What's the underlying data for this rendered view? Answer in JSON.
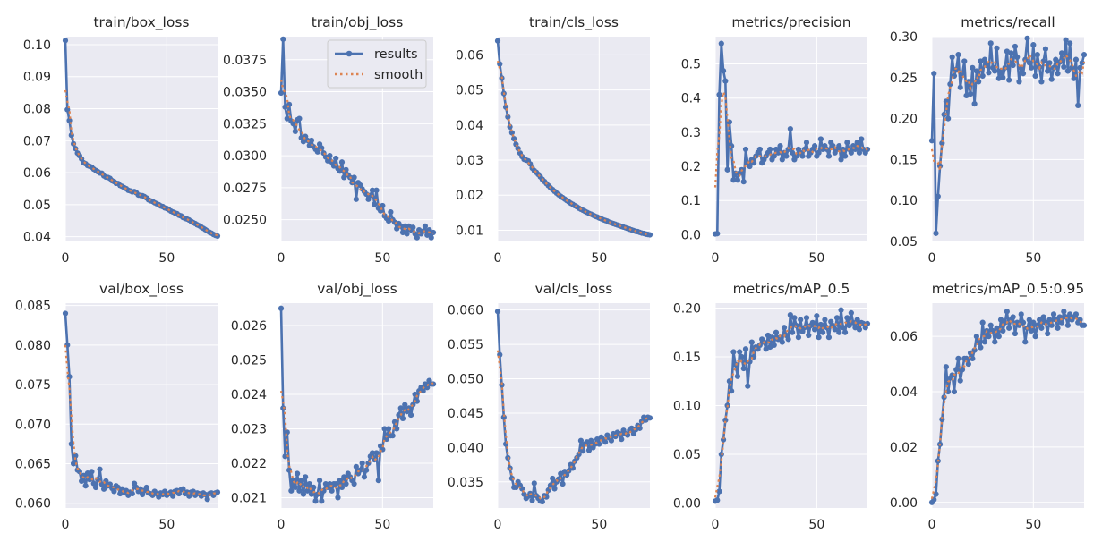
{
  "colors": {
    "results": "#4c72b0",
    "smooth": "#dd8452",
    "background": "#eaeaf2",
    "grid": "#ffffff"
  },
  "legend": {
    "results_label": "results",
    "smooth_label": "smooth",
    "placement": "upper-right of train/obj_loss"
  },
  "chart_data": [
    {
      "type": "line",
      "title": "train/box_loss",
      "xlabel": "",
      "ylabel": "",
      "xlim": [
        0,
        75
      ],
      "ylim": [
        0.0385,
        0.1025
      ],
      "xticks": [
        0,
        50
      ],
      "yticks": [
        0.04,
        0.05,
        0.06,
        0.07,
        0.08,
        0.09,
        0.1
      ],
      "series": [
        {
          "name": "results",
          "x_start": 0,
          "values": [
            0.1013,
            0.0797,
            0.0763,
            0.0717,
            0.069,
            0.0675,
            0.0661,
            0.0653,
            0.0643,
            0.0631,
            0.0628,
            0.0622,
            0.062,
            0.0617,
            0.0611,
            0.0607,
            0.0603,
            0.0599,
            0.0598,
            0.059,
            0.0586,
            0.0585,
            0.0582,
            0.0575,
            0.0572,
            0.0567,
            0.0566,
            0.056,
            0.0557,
            0.0553,
            0.055,
            0.0545,
            0.0543,
            0.054,
            0.0541,
            0.0537,
            0.053,
            0.0529,
            0.0528,
            0.0525,
            0.0521,
            0.0515,
            0.0512,
            0.051,
            0.0506,
            0.0503,
            0.05,
            0.0496,
            0.0494,
            0.049,
            0.0488,
            0.0484,
            0.048,
            0.0477,
            0.0474,
            0.0472,
            0.0467,
            0.0465,
            0.046,
            0.0457,
            0.0455,
            0.0452,
            0.0448,
            0.0444,
            0.0441,
            0.0437,
            0.0434,
            0.043,
            0.0426,
            0.0422,
            0.0418,
            0.0414,
            0.0411,
            0.0407,
            0.0404,
            0.0402
          ]
        }
      ]
    },
    {
      "type": "line",
      "title": "train/obj_loss",
      "xlabel": "",
      "ylabel": "",
      "xlim": [
        0,
        75
      ],
      "ylim": [
        0.0233,
        0.0393
      ],
      "xticks": [
        0,
        50
      ],
      "yticks": [
        0.025,
        0.0275,
        0.03,
        0.0325,
        0.035,
        0.0375
      ],
      "series": [
        {
          "name": "results",
          "x_start": 0,
          "values": [
            0.0349,
            0.0391,
            0.0338,
            0.0329,
            0.034,
            0.0327,
            0.0325,
            0.0319,
            0.0328,
            0.0329,
            0.0314,
            0.0311,
            0.0315,
            0.0312,
            0.0308,
            0.0312,
            0.0307,
            0.0305,
            0.0303,
            0.0309,
            0.0306,
            0.0302,
            0.0299,
            0.0296,
            0.03,
            0.0295,
            0.0292,
            0.0298,
            0.029,
            0.0288,
            0.0295,
            0.0283,
            0.0289,
            0.0285,
            0.0283,
            0.0279,
            0.0283,
            0.0266,
            0.0279,
            0.0277,
            0.0274,
            0.0272,
            0.027,
            0.0266,
            0.0269,
            0.0273,
            0.0262,
            0.0273,
            0.0259,
            0.0257,
            0.0261,
            0.0253,
            0.0251,
            0.0249,
            0.0256,
            0.025,
            0.0248,
            0.0243,
            0.0247,
            0.0245,
            0.024,
            0.0245,
            0.0239,
            0.0245,
            0.0242,
            0.0244,
            0.0239,
            0.0236,
            0.0242,
            0.0239,
            0.0241,
            0.0245,
            0.0238,
            0.0242,
            0.0236,
            0.024
          ]
        }
      ]
    },
    {
      "type": "line",
      "title": "train/cls_loss",
      "xlabel": "",
      "ylabel": "",
      "xlim": [
        0,
        75
      ],
      "ylim": [
        0.0068,
        0.0652
      ],
      "xticks": [
        0,
        50
      ],
      "yticks": [
        0.01,
        0.02,
        0.03,
        0.04,
        0.05,
        0.06
      ],
      "series": [
        {
          "name": "results",
          "x_start": 0,
          "values": [
            0.064,
            0.0574,
            0.0534,
            0.049,
            0.0451,
            0.0423,
            0.0395,
            0.0378,
            0.0361,
            0.0345,
            0.0333,
            0.032,
            0.031,
            0.0302,
            0.03,
            0.0298,
            0.0289,
            0.0277,
            0.027,
            0.0265,
            0.0259,
            0.0252,
            0.0245,
            0.0239,
            0.0233,
            0.0227,
            0.0221,
            0.0216,
            0.0211,
            0.0206,
            0.0201,
            0.0197,
            0.0193,
            0.0189,
            0.0185,
            0.0181,
            0.0177,
            0.0174,
            0.017,
            0.0167,
            0.0163,
            0.016,
            0.0157,
            0.0154,
            0.0151,
            0.0148,
            0.0146,
            0.0143,
            0.014,
            0.0138,
            0.0135,
            0.0133,
            0.013,
            0.0128,
            0.0126,
            0.0123,
            0.0121,
            0.0119,
            0.0117,
            0.0115,
            0.0113,
            0.0111,
            0.0109,
            0.0107,
            0.0105,
            0.0103,
            0.0101,
            0.0099,
            0.0097,
            0.0096,
            0.0094,
            0.0092,
            0.0091,
            0.0089,
            0.0088,
            0.0087
          ]
        }
      ]
    },
    {
      "type": "line",
      "title": "metrics/precision",
      "xlabel": "",
      "ylabel": "",
      "xlim": [
        0,
        75
      ],
      "ylim": [
        -0.02,
        0.58
      ],
      "xticks": [
        0,
        50
      ],
      "yticks": [
        0.0,
        0.1,
        0.2,
        0.3,
        0.4,
        0.5
      ],
      "series": [
        {
          "name": "results",
          "x_start": 0,
          "values": [
            0.002,
            0.003,
            0.41,
            0.56,
            0.48,
            0.45,
            0.19,
            0.33,
            0.26,
            0.16,
            0.18,
            0.16,
            0.18,
            0.19,
            0.155,
            0.25,
            0.21,
            0.2,
            0.22,
            0.21,
            0.23,
            0.24,
            0.25,
            0.21,
            0.22,
            0.23,
            0.24,
            0.25,
            0.22,
            0.23,
            0.25,
            0.24,
            0.26,
            0.22,
            0.24,
            0.23,
            0.25,
            0.31,
            0.24,
            0.22,
            0.23,
            0.25,
            0.24,
            0.23,
            0.25,
            0.27,
            0.23,
            0.24,
            0.25,
            0.26,
            0.23,
            0.24,
            0.28,
            0.25,
            0.26,
            0.25,
            0.23,
            0.27,
            0.26,
            0.24,
            0.25,
            0.26,
            0.22,
            0.25,
            0.23,
            0.27,
            0.25,
            0.24,
            0.26,
            0.25,
            0.27,
            0.24,
            0.28,
            0.25,
            0.24,
            0.25
          ]
        }
      ]
    },
    {
      "type": "line",
      "title": "metrics/recall",
      "xlabel": "",
      "ylabel": "",
      "xlim": [
        0,
        75
      ],
      "ylim": [
        0.05,
        0.3
      ],
      "xticks": [
        0,
        50
      ],
      "yticks": [
        0.05,
        0.1,
        0.15,
        0.2,
        0.25,
        0.3
      ],
      "series": [
        {
          "name": "results",
          "x_start": 0,
          "values": [
            0.173,
            0.255,
            0.06,
            0.105,
            0.142,
            0.17,
            0.205,
            0.221,
            0.2,
            0.242,
            0.275,
            0.252,
            0.26,
            0.278,
            0.238,
            0.255,
            0.27,
            0.228,
            0.245,
            0.23,
            0.262,
            0.218,
            0.258,
            0.245,
            0.27,
            0.252,
            0.272,
            0.265,
            0.256,
            0.292,
            0.262,
            0.258,
            0.286,
            0.249,
            0.258,
            0.25,
            0.262,
            0.282,
            0.247,
            0.28,
            0.265,
            0.288,
            0.275,
            0.245,
            0.262,
            0.255,
            0.272,
            0.298,
            0.268,
            0.262,
            0.29,
            0.252,
            0.278,
            0.263,
            0.245,
            0.27,
            0.285,
            0.258,
            0.268,
            0.248,
            0.262,
            0.272,
            0.255,
            0.269,
            0.28,
            0.263,
            0.296,
            0.258,
            0.292,
            0.262,
            0.249,
            0.272,
            0.216,
            0.262,
            0.268,
            0.278
          ]
        }
      ]
    },
    {
      "type": "line",
      "title": "val/box_loss",
      "xlabel": "",
      "ylabel": "",
      "xlim": [
        0,
        75
      ],
      "ylim": [
        0.0594,
        0.0853
      ],
      "xticks": [
        0,
        50
      ],
      "yticks": [
        0.06,
        0.065,
        0.07,
        0.075,
        0.08,
        0.085
      ],
      "series": [
        {
          "name": "results",
          "x_start": 0,
          "values": [
            0.084,
            0.08,
            0.076,
            0.0675,
            0.065,
            0.066,
            0.0642,
            0.064,
            0.0628,
            0.0635,
            0.0622,
            0.0638,
            0.063,
            0.064,
            0.0625,
            0.062,
            0.063,
            0.0643,
            0.0624,
            0.0618,
            0.0628,
            0.0622,
            0.0624,
            0.0619,
            0.0615,
            0.0622,
            0.062,
            0.0612,
            0.0618,
            0.0613,
            0.0616,
            0.061,
            0.0614,
            0.0612,
            0.0625,
            0.062,
            0.0615,
            0.0618,
            0.0611,
            0.0616,
            0.062,
            0.0613,
            0.0612,
            0.061,
            0.0615,
            0.0612,
            0.0608,
            0.0613,
            0.0611,
            0.0615,
            0.061,
            0.0612,
            0.0614,
            0.0609,
            0.0615,
            0.0616,
            0.0612,
            0.0617,
            0.0618,
            0.0612,
            0.0614,
            0.0609,
            0.0614,
            0.0615,
            0.061,
            0.0613,
            0.0612,
            0.0609,
            0.0613,
            0.0611,
            0.0605,
            0.0612,
            0.0613,
            0.061,
            0.0613,
            0.0614
          ]
        }
      ]
    },
    {
      "type": "line",
      "title": "val/obj_loss",
      "xlabel": "",
      "ylabel": "",
      "xlim": [
        0,
        75
      ],
      "ylim": [
        0.0207,
        0.02665
      ],
      "xticks": [
        0,
        50
      ],
      "yticks": [
        0.021,
        0.022,
        0.023,
        0.024,
        0.025,
        0.026
      ],
      "series": [
        {
          "name": "results",
          "x_start": 0,
          "values": [
            0.0265,
            0.0236,
            0.0222,
            0.0229,
            0.0218,
            0.0212,
            0.0215,
            0.0213,
            0.0217,
            0.0212,
            0.0215,
            0.0211,
            0.0216,
            0.0212,
            0.0214,
            0.0211,
            0.0213,
            0.0209,
            0.0211,
            0.0215,
            0.0209,
            0.0212,
            0.0214,
            0.0213,
            0.0214,
            0.0212,
            0.0214,
            0.0214,
            0.021,
            0.0215,
            0.0213,
            0.0216,
            0.0214,
            0.0217,
            0.0216,
            0.0215,
            0.0214,
            0.0219,
            0.0217,
            0.0218,
            0.022,
            0.0216,
            0.0218,
            0.022,
            0.0222,
            0.0223,
            0.0221,
            0.0223,
            0.0215,
            0.0225,
            0.0224,
            0.023,
            0.0227,
            0.023,
            0.0228,
            0.0228,
            0.0232,
            0.023,
            0.0234,
            0.0236,
            0.0233,
            0.0237,
            0.0235,
            0.0236,
            0.0234,
            0.0237,
            0.024,
            0.0238,
            0.0241,
            0.0242,
            0.0241,
            0.0243,
            0.0242,
            0.0244,
            0.0243,
            0.0243
          ]
        }
      ]
    },
    {
      "type": "line",
      "title": "val/cls_loss",
      "xlabel": "",
      "ylabel": "",
      "xlim": [
        0,
        75
      ],
      "ylim": [
        0.0312,
        0.061
      ],
      "xticks": [
        0,
        50
      ],
      "yticks": [
        0.035,
        0.04,
        0.045,
        0.05,
        0.055,
        0.06
      ],
      "series": [
        {
          "name": "results",
          "x_start": 0,
          "values": [
            0.0598,
            0.0535,
            0.0491,
            0.0444,
            0.0405,
            0.0385,
            0.037,
            0.0355,
            0.0342,
            0.0342,
            0.035,
            0.0345,
            0.034,
            0.0332,
            0.0326,
            0.0329,
            0.0333,
            0.0323,
            0.0348,
            0.033,
            0.0326,
            0.0322,
            0.0321,
            0.033,
            0.0328,
            0.0338,
            0.0345,
            0.0355,
            0.034,
            0.035,
            0.0354,
            0.0362,
            0.0347,
            0.0365,
            0.036,
            0.0366,
            0.0375,
            0.037,
            0.038,
            0.0385,
            0.039,
            0.041,
            0.0395,
            0.0405,
            0.0408,
            0.0396,
            0.041,
            0.04,
            0.0405,
            0.0412,
            0.0405,
            0.0415,
            0.0412,
            0.0408,
            0.0418,
            0.0414,
            0.041,
            0.042,
            0.0416,
            0.0422,
            0.042,
            0.0412,
            0.0425,
            0.042,
            0.0418,
            0.0425,
            0.0428,
            0.042,
            0.0426,
            0.0432,
            0.0428,
            0.0438,
            0.0444,
            0.044,
            0.0444,
            0.0443
          ]
        }
      ]
    },
    {
      "type": "line",
      "title": "metrics/mAP_0.5",
      "xlabel": "",
      "ylabel": "",
      "xlim": [
        0,
        75
      ],
      "ylim": [
        -0.005,
        0.205
      ],
      "xticks": [
        0,
        50
      ],
      "yticks": [
        0.0,
        0.05,
        0.1,
        0.15,
        0.2
      ],
      "series": [
        {
          "name": "results",
          "x_start": 0,
          "values": [
            0.002,
            0.003,
            0.012,
            0.05,
            0.065,
            0.085,
            0.1,
            0.125,
            0.115,
            0.155,
            0.142,
            0.13,
            0.155,
            0.15,
            0.138,
            0.158,
            0.12,
            0.145,
            0.165,
            0.15,
            0.16,
            0.158,
            0.162,
            0.168,
            0.165,
            0.158,
            0.172,
            0.16,
            0.17,
            0.162,
            0.175,
            0.168,
            0.17,
            0.165,
            0.18,
            0.172,
            0.168,
            0.193,
            0.175,
            0.19,
            0.182,
            0.17,
            0.188,
            0.176,
            0.18,
            0.19,
            0.172,
            0.182,
            0.185,
            0.178,
            0.192,
            0.17,
            0.183,
            0.175,
            0.188,
            0.18,
            0.17,
            0.186,
            0.182,
            0.178,
            0.19,
            0.175,
            0.198,
            0.18,
            0.175,
            0.19,
            0.182,
            0.195,
            0.185,
            0.18,
            0.188,
            0.178,
            0.185,
            0.184,
            0.18,
            0.184
          ]
        }
      ]
    },
    {
      "type": "line",
      "title": "metrics/mAP_0.5:0.95",
      "xlabel": "",
      "ylabel": "",
      "xlim": [
        0,
        75
      ],
      "ylim": [
        -0.002,
        0.072
      ],
      "xticks": [
        0,
        50
      ],
      "yticks": [
        0.0,
        0.02,
        0.04,
        0.06
      ],
      "series": [
        {
          "name": "results",
          "x_start": 0,
          "values": [
            0.0,
            0.001,
            0.003,
            0.015,
            0.021,
            0.03,
            0.038,
            0.049,
            0.04,
            0.045,
            0.046,
            0.04,
            0.048,
            0.052,
            0.044,
            0.048,
            0.052,
            0.052,
            0.05,
            0.054,
            0.052,
            0.055,
            0.06,
            0.058,
            0.056,
            0.065,
            0.058,
            0.062,
            0.06,
            0.064,
            0.062,
            0.058,
            0.063,
            0.06,
            0.066,
            0.062,
            0.065,
            0.069,
            0.063,
            0.066,
            0.067,
            0.061,
            0.065,
            0.064,
            0.068,
            0.065,
            0.058,
            0.063,
            0.066,
            0.062,
            0.065,
            0.06,
            0.064,
            0.066,
            0.063,
            0.067,
            0.065,
            0.061,
            0.066,
            0.064,
            0.068,
            0.066,
            0.063,
            0.067,
            0.065,
            0.069,
            0.067,
            0.064,
            0.068,
            0.066,
            0.067,
            0.068,
            0.065,
            0.066,
            0.064,
            0.064
          ]
        }
      ]
    }
  ]
}
